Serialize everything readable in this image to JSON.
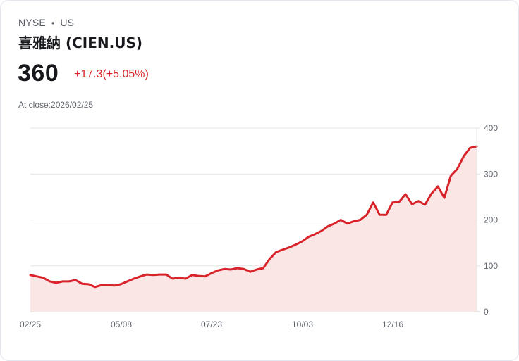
{
  "header": {
    "exchange": "NYSE",
    "separator": "•",
    "market": "US",
    "title": "喜雅納 (CIEN.US)"
  },
  "quote": {
    "price": "360",
    "change": "+17.3(+5.05%)",
    "close_label": "At close:2026/02/25"
  },
  "colors": {
    "line": "#d8232a",
    "fill": "#fbe6e6",
    "grid": "#e4e4e4",
    "price_up": "#d8232a"
  },
  "chart_data": {
    "type": "area",
    "title": "喜雅納 (CIEN.US)",
    "xlabel": "",
    "ylabel": "",
    "ylim": [
      0,
      400
    ],
    "y_ticks": [
      0,
      100,
      200,
      300,
      400
    ],
    "y_tick_labels": [
      "0",
      "100",
      "200",
      "300",
      "400"
    ],
    "x_tick_labels": [
      "02/25",
      "05/08",
      "07/23",
      "10/03",
      "12/16"
    ],
    "grid": true,
    "legend": "none",
    "y_axis_position": "right",
    "series": [
      {
        "name": "CIEN.US close",
        "values": [
          80,
          77,
          74,
          66,
          63,
          66,
          66,
          69,
          61,
          60,
          54,
          58,
          58,
          57,
          60,
          66,
          72,
          77,
          81,
          80,
          81,
          81,
          72,
          74,
          72,
          80,
          78,
          77,
          84,
          90,
          93,
          92,
          95,
          93,
          87,
          92,
          95,
          115,
          130,
          135,
          140,
          146,
          153,
          163,
          169,
          176,
          186,
          192,
          200,
          192,
          197,
          200,
          211,
          238,
          211,
          211,
          238,
          239,
          256,
          234,
          241,
          233,
          257,
          273,
          248,
          296,
          311,
          339,
          357,
          360
        ]
      }
    ]
  }
}
